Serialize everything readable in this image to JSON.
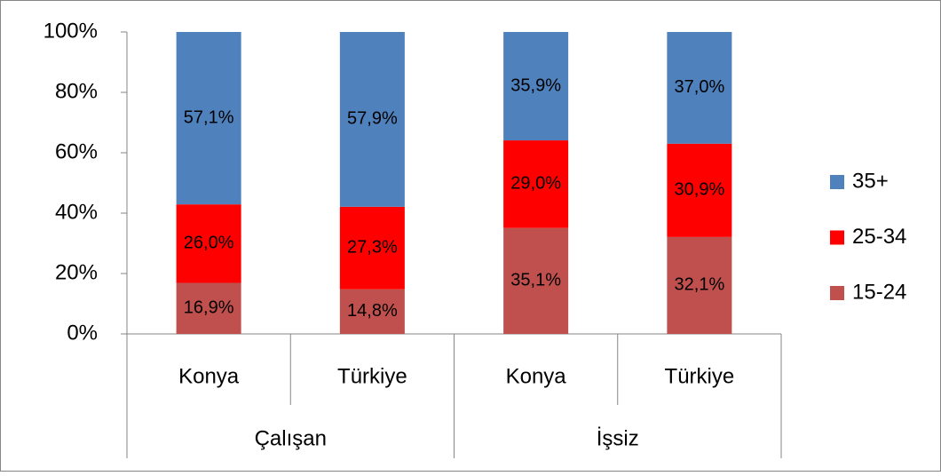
{
  "chart_data": {
    "type": "stacked_bar",
    "categories": [
      "Konya",
      "Türkiye",
      "Konya",
      "Türkiye"
    ],
    "groups": [
      "Çalışan",
      "İşsiz"
    ],
    "series": [
      {
        "name": "15-24",
        "color": "#c0504d",
        "values": [
          16.9,
          14.8,
          35.1,
          32.1
        ],
        "value_labels": [
          "16,9%",
          "14,8%",
          "35,1%",
          "32,1%"
        ]
      },
      {
        "name": "25-34",
        "color": "#ff0000",
        "values": [
          26.0,
          27.3,
          29.0,
          30.9
        ],
        "value_labels": [
          "26,0%",
          "27,3%",
          "29,0%",
          "30,9%"
        ]
      },
      {
        "name": "35+",
        "color": "#4f81bd",
        "values": [
          57.1,
          57.9,
          35.9,
          37.0
        ],
        "value_labels": [
          "57,1%",
          "57,9%",
          "35,9%",
          "37,0%"
        ]
      }
    ],
    "ylim": [
      0,
      100
    ],
    "yticks": [
      {
        "value": 0,
        "label": "0%"
      },
      {
        "value": 20,
        "label": "20%"
      },
      {
        "value": 40,
        "label": "40%"
      },
      {
        "value": 60,
        "label": "60%"
      },
      {
        "value": 80,
        "label": "80%"
      },
      {
        "value": 100,
        "label": "100%"
      }
    ],
    "grid": false,
    "legend": "right"
  }
}
